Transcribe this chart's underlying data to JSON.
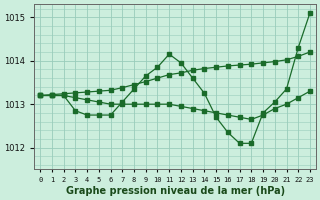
{
  "title": "Graphe pression niveau de la mer (hPa)",
  "xlabel_ticks": [
    "0",
    "1",
    "2",
    "3",
    "4",
    "5",
    "6",
    "7",
    "8",
    "9",
    "10",
    "11",
    "12",
    "13",
    "14",
    "15",
    "16",
    "17",
    "18",
    "19",
    "20",
    "21",
    "22",
    "23"
  ],
  "ylim": [
    1011.5,
    1015.3
  ],
  "yticks": [
    1012,
    1013,
    1014,
    1015
  ],
  "background_color": "#cceedd",
  "grid_color": "#99ccbb",
  "line_color": "#1a6b2a",
  "series": {
    "line_zigzag": [
      1013.2,
      1013.2,
      1013.2,
      1012.85,
      1012.75,
      1012.75,
      1012.75,
      1013.05,
      1013.35,
      1013.65,
      1013.85,
      1014.15,
      1013.95,
      1013.6,
      1013.25,
      1012.7,
      1012.35,
      1012.1,
      1012.1,
      1012.8,
      1013.05,
      1013.35,
      1014.3,
      1015.1
    ],
    "line_flat": [
      1013.2,
      1013.2,
      1013.2,
      1013.15,
      1013.1,
      1013.05,
      1013.0,
      1013.0,
      1013.0,
      1013.0,
      1013.0,
      1013.0,
      1012.95,
      1012.9,
      1012.85,
      1012.8,
      1012.75,
      1012.7,
      1012.65,
      1012.75,
      1012.9,
      1013.0,
      1013.15,
      1013.3
    ],
    "line_diagonal": [
      1013.2,
      1013.22,
      1013.24,
      1013.26,
      1013.28,
      1013.3,
      1013.32,
      1013.38,
      1013.45,
      1013.52,
      1013.6,
      1013.68,
      1013.72,
      1013.78,
      1013.82,
      1013.85,
      1013.88,
      1013.9,
      1013.92,
      1013.95,
      1013.98,
      1014.02,
      1014.1,
      1014.2
    ]
  }
}
